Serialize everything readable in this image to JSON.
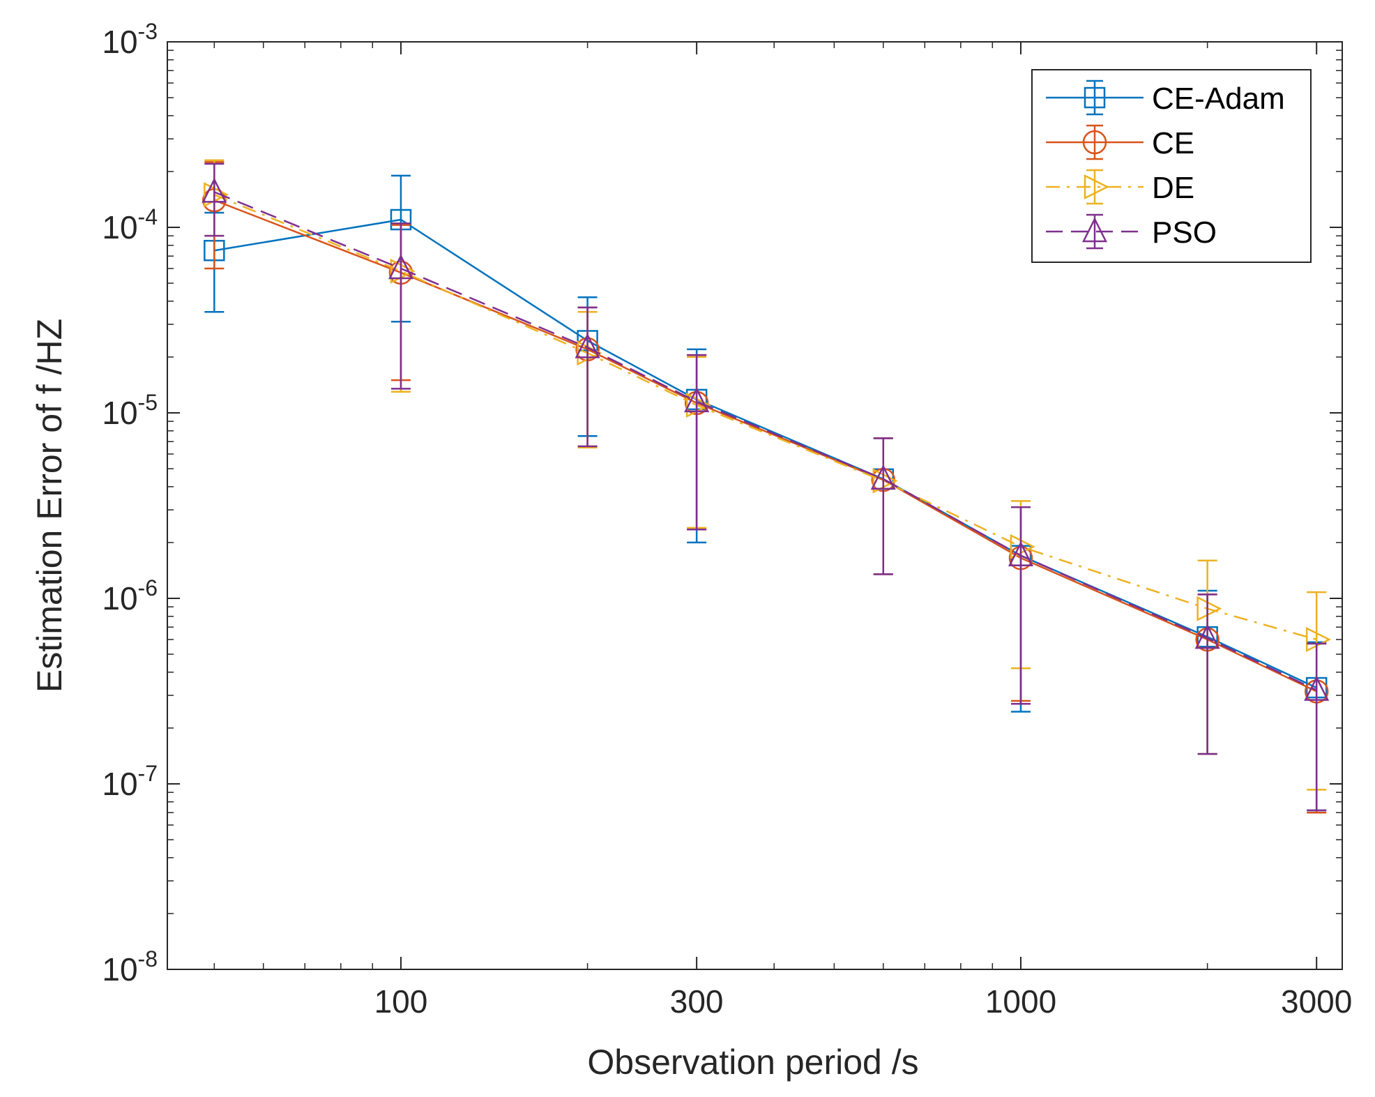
{
  "chart_data": {
    "type": "line",
    "title": "",
    "xlabel": "Observation period /s",
    "ylabel": "Estimation Error of f /HZ",
    "xscale": "log",
    "yscale": "log",
    "xlim": [
      42,
      3300
    ],
    "ylim": [
      1e-08,
      0.001
    ],
    "x_ticks": [
      100,
      300,
      1000,
      3000
    ],
    "x_tick_labels": [
      "100",
      "300",
      "1000",
      "3000"
    ],
    "y_ticks": [
      1e-08,
      1e-07,
      1e-06,
      1e-05,
      0.0001,
      0.001
    ],
    "y_tick_labels": [
      {
        "base": "10",
        "exp": "-8"
      },
      {
        "base": "10",
        "exp": "-7"
      },
      {
        "base": "10",
        "exp": "-6"
      },
      {
        "base": "10",
        "exp": "-5"
      },
      {
        "base": "10",
        "exp": "-4"
      },
      {
        "base": "10",
        "exp": "-3"
      }
    ],
    "legend_position": "top-right",
    "x": [
      50,
      100,
      200,
      300,
      600,
      1000,
      2000,
      3000
    ],
    "series": [
      {
        "name": "CE-Adam",
        "color": "#0072BD",
        "marker": "square",
        "dash": "solid",
        "values": [
          7.5e-05,
          0.00011,
          2.45e-05,
          1.18e-05,
          4.4e-06,
          1.7e-06,
          6.2e-07,
          3.3e-07
        ],
        "err_low": [
          3.5e-05,
          3.1e-05,
          7.5e-06,
          2e-06,
          1.35e-06,
          2.45e-07,
          1.45e-07,
          7.2e-08
        ],
        "err_high": [
          0.00012,
          0.00019,
          4.2e-05,
          2.2e-05,
          7.3e-06,
          3.1e-06,
          1.1e-06,
          5.8e-07
        ]
      },
      {
        "name": "CE",
        "color": "#D95319",
        "marker": "circle",
        "dash": "solid",
        "values": [
          0.00014,
          5.7e-05,
          2.2e-05,
          1.13e-05,
          4.35e-06,
          1.65e-06,
          6e-07,
          3.15e-07
        ],
        "err_low": [
          6e-05,
          1.5e-05,
          6.6e-06,
          2.35e-06,
          1.35e-06,
          2.8e-07,
          1.45e-07,
          7e-08
        ],
        "err_high": [
          0.000225,
          0.000103,
          3.7e-05,
          2.05e-05,
          7.3e-06,
          3.1e-06,
          1.05e-06,
          5.7e-07
        ]
      },
      {
        "name": "DE",
        "color": "#EDB120",
        "marker": "triangle-right",
        "dash": "dashdot",
        "values": [
          0.00015,
          5.8e-05,
          2.1e-05,
          1.1e-05,
          4.3e-06,
          1.9e-06,
          8.8e-07,
          6e-07
        ],
        "err_low": [
          9e-05,
          1.3e-05,
          6.5e-06,
          2.4e-06,
          1.35e-06,
          4.2e-07,
          1.45e-07,
          9.3e-08
        ],
        "err_high": [
          0.00023,
          0.000105,
          3.5e-05,
          2e-05,
          7.3e-06,
          3.35e-06,
          1.6e-06,
          1.08e-06
        ]
      },
      {
        "name": "PSO",
        "color": "#7E2F8E",
        "marker": "triangle-up",
        "dash": "dashed",
        "values": [
          0.000155,
          6e-05,
          2.25e-05,
          1.15e-05,
          4.4e-06,
          1.7e-06,
          6.1e-07,
          3.2e-07
        ],
        "err_low": [
          9e-05,
          1.35e-05,
          6.6e-06,
          2.35e-06,
          1.35e-06,
          2.7e-07,
          1.45e-07,
          7.2e-08
        ],
        "err_high": [
          0.00022,
          0.000105,
          3.7e-05,
          2.05e-05,
          7.3e-06,
          3.1e-06,
          1.05e-06,
          5.7e-07
        ]
      }
    ]
  }
}
